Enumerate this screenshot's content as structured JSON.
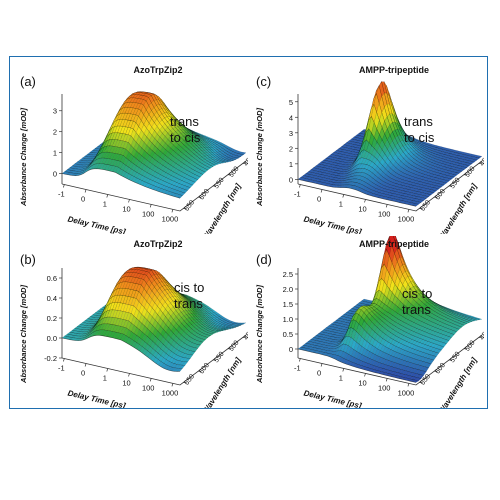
{
  "chart_data": [
    {
      "type": "surface3d",
      "panel_label": "(a)",
      "title": "AzoTrpZip2",
      "annotation": [
        "trans",
        "to cis"
      ],
      "xlabel": "Delay Time [ps]",
      "ylabel": "Wavelength [nm]",
      "zlabel": "Absorbance Change [mOD]",
      "x_ticks": [
        "-1",
        "0",
        "1",
        "10",
        "100",
        "1000"
      ],
      "y_ticks": [
        "450",
        "500",
        "550",
        "600",
        "650"
      ],
      "z_ticks": [
        "0",
        "1",
        "2",
        "3"
      ],
      "zlim": [
        -0.5,
        3.8
      ],
      "peak": {
        "delay_ps": 5,
        "wavelength_nm": 550,
        "value_mOD": 3.7
      },
      "colorscale": [
        "#2b3fa6",
        "#2aa9c9",
        "#2ea836",
        "#f1e21a",
        "#f08a1c",
        "#d6201c"
      ]
    },
    {
      "type": "surface3d",
      "panel_label": "(b)",
      "title": "AzoTrpZip2",
      "annotation": [
        "cis to",
        "trans"
      ],
      "xlabel": "Delay Time [ps]",
      "ylabel": "Wavelength [nm]",
      "zlabel": "Absorbance Change [mOD]",
      "x_ticks": [
        "-1",
        "0",
        "1",
        "10",
        "100",
        "1000"
      ],
      "y_ticks": [
        "450",
        "500",
        "550",
        "600",
        "650"
      ],
      "z_ticks": [
        "-0.2",
        "0.0",
        "0.2",
        "0.4",
        "0.6"
      ],
      "zlim": [
        -0.2,
        0.7
      ],
      "peak": {
        "delay_ps": 10,
        "wavelength_nm": 540,
        "value_mOD": 0.65
      },
      "colorscale": [
        "#2b3fa6",
        "#2aa9c9",
        "#2ea836",
        "#f1e21a",
        "#f08a1c",
        "#d6201c"
      ]
    },
    {
      "type": "surface3d",
      "panel_label": "(c)",
      "title": "AMPP-tripeptide",
      "annotation": [
        "trans",
        "to cis"
      ],
      "xlabel": "Delay Time [ps]",
      "ylabel": "Wavelength [nm]",
      "zlabel": "Absorbance Change [mOD]",
      "x_ticks": [
        "-1",
        "0",
        "1",
        "10",
        "100",
        "1000"
      ],
      "y_ticks": [
        "450",
        "500",
        "550",
        "600",
        "650"
      ],
      "z_ticks": [
        "0",
        "1",
        "2",
        "3",
        "4",
        "5"
      ],
      "zlim": [
        -0.3,
        5.5
      ],
      "peak": {
        "delay_ps": 1,
        "wavelength_nm": 560,
        "value_mOD": 5.5
      },
      "colorscale": [
        "#2b3fa6",
        "#2aa9c9",
        "#2ea836",
        "#f1e21a",
        "#f08a1c",
        "#d6201c"
      ]
    },
    {
      "type": "surface3d",
      "panel_label": "(d)",
      "title": "AMPP-tripeptide",
      "annotation": [
        "cis to",
        "trans"
      ],
      "xlabel": "Delay Time [ps]",
      "ylabel": "Wavelength [nm]",
      "zlabel": "Absorbance Change [mOD]",
      "x_ticks": [
        "-1",
        "0",
        "1",
        "10",
        "100",
        "1000"
      ],
      "y_ticks": [
        "450",
        "500",
        "550",
        "600",
        "650"
      ],
      "z_ticks": [
        "0",
        "0.5",
        "1.0",
        "1.5",
        "2.0",
        "2.5"
      ],
      "zlim": [
        -0.3,
        2.7
      ],
      "peak": {
        "delay_ps": 1,
        "wavelength_nm": 540,
        "value_mOD": 2.6
      },
      "colorscale": [
        "#2b3fa6",
        "#2aa9c9",
        "#2ea836",
        "#f1e21a",
        "#f08a1c",
        "#d6201c"
      ]
    }
  ]
}
